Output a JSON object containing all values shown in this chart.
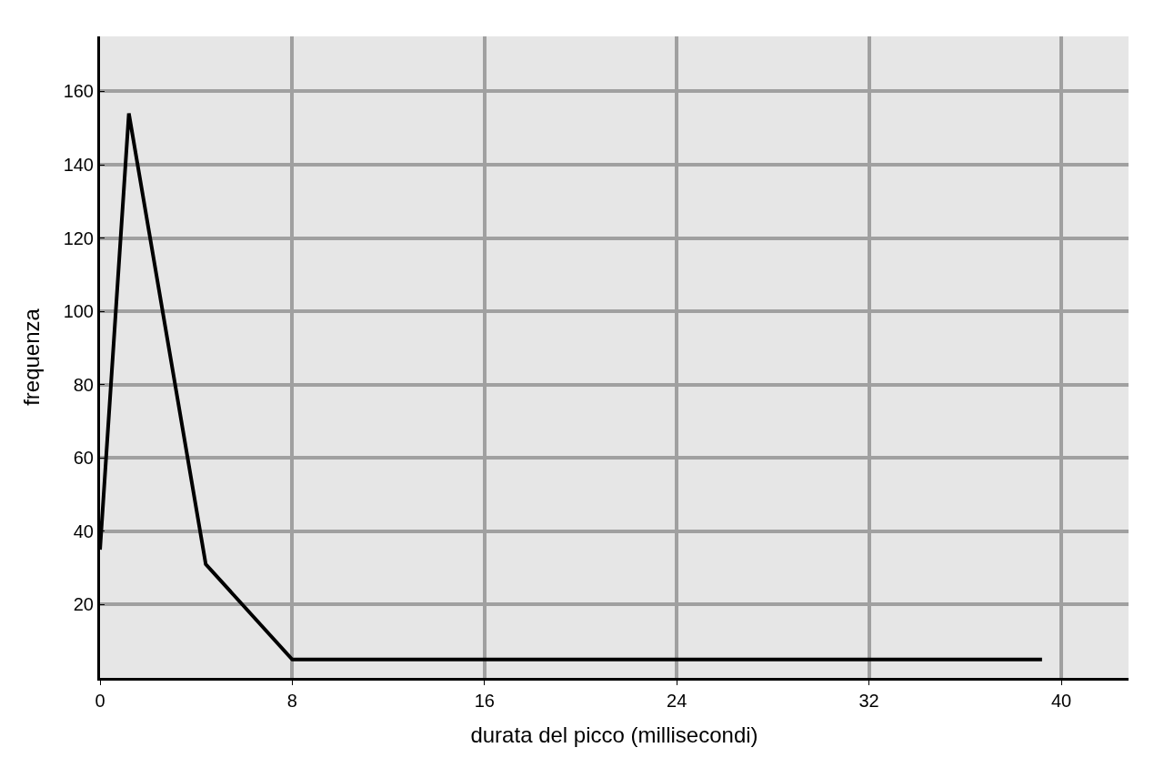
{
  "chart_data": {
    "type": "line",
    "xlabel": "durata del picco (millisecondi)",
    "ylabel": "frequenza",
    "x": [
      0,
      1.2,
      4.4,
      8,
      39.2
    ],
    "series": [
      {
        "color": "#000000",
        "values": [
          35,
          154,
          31,
          5,
          5
        ]
      }
    ],
    "xlim": [
      0,
      42.8
    ],
    "ylim": [
      0,
      175
    ],
    "xticks": [
      0,
      8,
      16,
      24,
      32,
      40
    ],
    "yticks": [
      20,
      40,
      60,
      80,
      100,
      120,
      140,
      160
    ],
    "grid": true,
    "marker": "none",
    "line_style": "solid"
  }
}
